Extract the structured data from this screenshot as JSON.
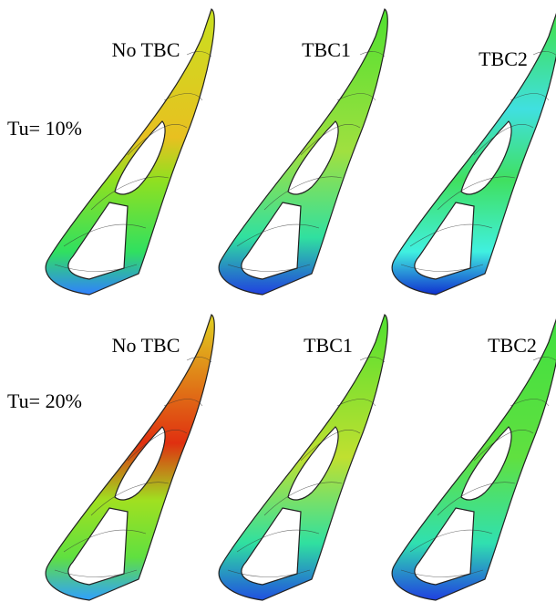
{
  "rows": [
    {
      "label": "Tu= 10%",
      "panels": [
        "No TBC",
        "TBC1",
        "TBC2"
      ]
    },
    {
      "label": "Tu= 20%",
      "panels": [
        "No TBC",
        "TBC1",
        "TBC2"
      ]
    }
  ]
}
